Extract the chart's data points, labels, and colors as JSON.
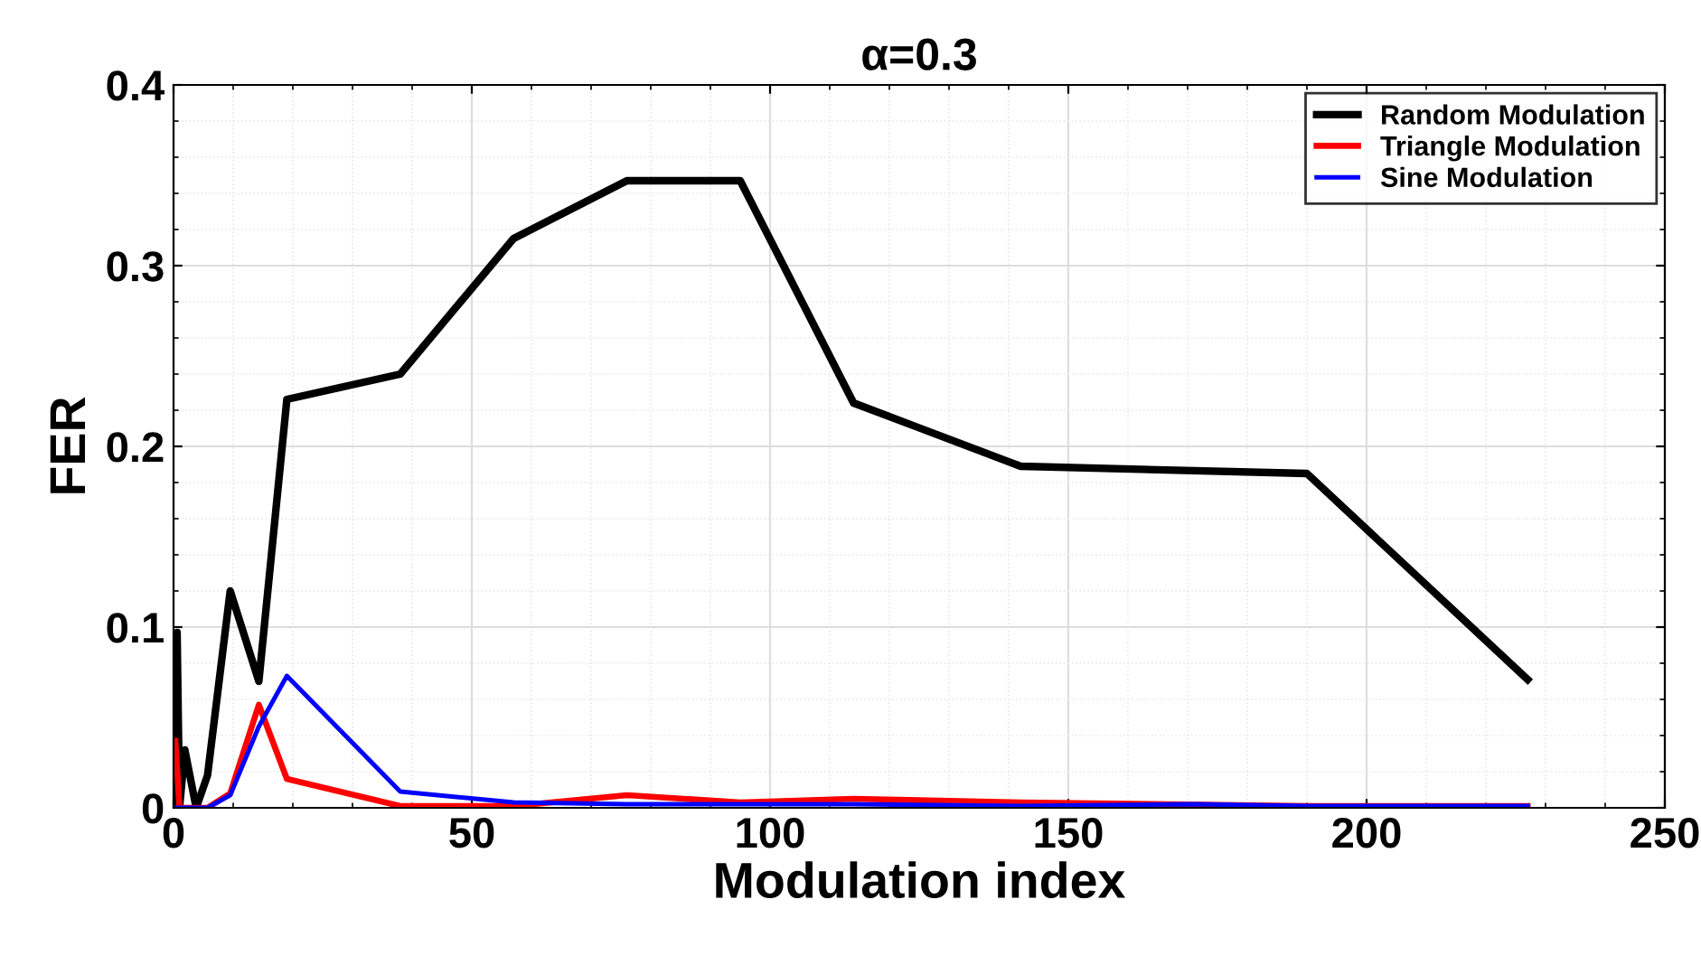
{
  "chart_data": {
    "type": "line",
    "title": "α=0.3",
    "xlabel": "Modulation index",
    "ylabel": "FER",
    "xlim": [
      0,
      250
    ],
    "xticks": [
      0,
      50,
      100,
      150,
      200,
      250
    ],
    "ylim": [
      0,
      0.4
    ],
    "yticks": [
      0,
      0.1,
      0.2,
      0.3,
      0.4
    ],
    "grid": true,
    "legend": "top right",
    "line_style": "solid",
    "marker": "none",
    "series": [
      {
        "name": "Random Modulation",
        "color": "#000000",
        "x": [
          0.3,
          0.6,
          1.0,
          1.9,
          3.8,
          5.7,
          9.5,
          14.3,
          19,
          38,
          57,
          76,
          95,
          114,
          142,
          190,
          227
        ],
        "values": [
          0,
          0.097,
          0,
          0.032,
          0,
          0.018,
          0.12,
          0.07,
          0.226,
          0.24,
          0.315,
          0.347,
          0.347,
          0.224,
          0.189,
          0.185,
          0.071
        ]
      },
      {
        "name": "Triangle Modulation",
        "color": "#ff0000",
        "x": [
          0.3,
          1.0,
          1.9,
          3.8,
          5.7,
          9.5,
          14.3,
          19,
          38,
          57,
          76,
          95,
          114,
          142,
          190,
          227
        ],
        "values": [
          0.037,
          0,
          0,
          0,
          0,
          0.008,
          0.057,
          0.016,
          0.001,
          0.001,
          0.007,
          0.003,
          0.005,
          0.003,
          0.001,
          0.001
        ]
      },
      {
        "name": "Sine Modulation",
        "color": "#0000ff",
        "x": [
          0.3,
          1.0,
          1.9,
          3.8,
          5.7,
          9.5,
          14.3,
          19,
          38,
          57,
          76,
          95,
          114,
          142,
          171,
          190,
          227
        ],
        "values": [
          0,
          0,
          0,
          0,
          0,
          0.007,
          0.045,
          0.073,
          0.009,
          0.003,
          0.002,
          0.002,
          0.002,
          0.001,
          0.002,
          0.001,
          0.001
        ]
      }
    ]
  }
}
